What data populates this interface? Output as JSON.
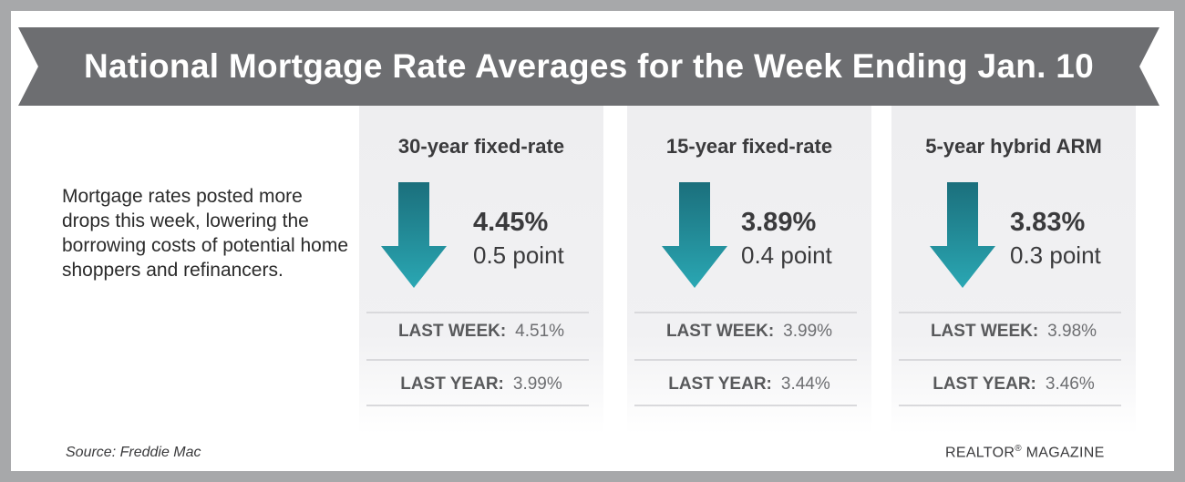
{
  "title": "National Mortgage Rate Averages for the Week Ending Jan. 10",
  "description": "Mortgage rates posted more drops this week, lowering the borrowing costs of potential home shoppers and refinancers.",
  "colors": {
    "frame": "#a7a8aa",
    "banner": "#6d6e71",
    "arrow_top": "#1b6f7c",
    "arrow_bottom": "#2aa7b3",
    "text": "#3a3a3c"
  },
  "cards": [
    {
      "title": "30-year fixed-rate",
      "rate": "4.45%",
      "change": "0.5 point",
      "direction": "down",
      "last_week_label": "LAST WEEK:",
      "last_week_value": "4.51%",
      "last_year_label": "LAST YEAR:",
      "last_year_value": "3.99%"
    },
    {
      "title": "15-year fixed-rate",
      "rate": "3.89%",
      "change": "0.4 point",
      "direction": "down",
      "last_week_label": "LAST WEEK:",
      "last_week_value": "3.99%",
      "last_year_label": "LAST YEAR:",
      "last_year_value": "3.44%"
    },
    {
      "title": "5-year hybrid ARM",
      "rate": "3.83%",
      "change": "0.3 point",
      "direction": "down",
      "last_week_label": "LAST WEEK:",
      "last_week_value": "3.98%",
      "last_year_label": "LAST YEAR:",
      "last_year_value": "3.46%"
    }
  ],
  "source": "Source: Freddie Mac",
  "brand": {
    "name": "REALTOR",
    "mark": "®",
    "suffix": " MAGAZINE"
  }
}
